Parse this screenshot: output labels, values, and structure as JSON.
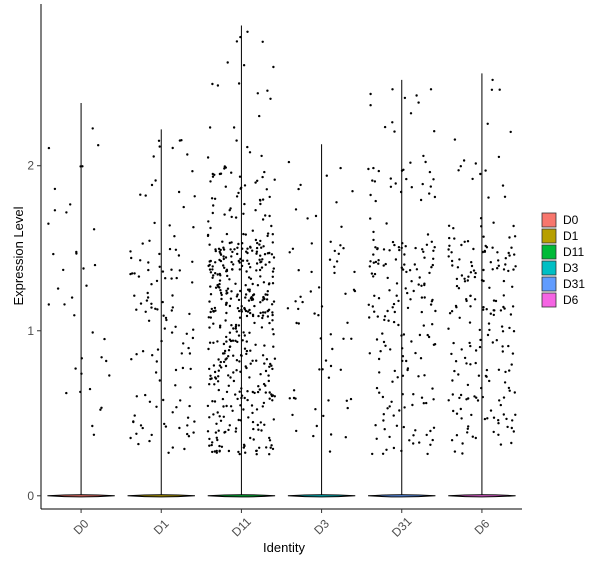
{
  "chart_data": {
    "type": "violin-jitter",
    "title": "",
    "xlabel": "Identity",
    "ylabel": "Expression Level",
    "categories": [
      "D0",
      "D1",
      "D11",
      "D3",
      "D31",
      "D6"
    ],
    "yticks": [
      0,
      1,
      2
    ],
    "ylim": [
      -0.08,
      2.98
    ],
    "grid": false,
    "legend_position": "right",
    "series": [
      {
        "name": "D0",
        "color": "#F8766D",
        "max": 2.38,
        "n_points": 38,
        "zero_width": 0.42
      },
      {
        "name": "D1",
        "color": "#B79F00",
        "max": 2.22,
        "n_points": 120,
        "zero_width": 0.42
      },
      {
        "name": "D11",
        "color": "#00BA38",
        "max": 2.85,
        "n_points": 480,
        "zero_width": 0.42
      },
      {
        "name": "D3",
        "color": "#00BFC4",
        "max": 2.13,
        "n_points": 70,
        "zero_width": 0.42
      },
      {
        "name": "D31",
        "color": "#619CFF",
        "max": 2.52,
        "n_points": 200,
        "zero_width": 0.42
      },
      {
        "name": "D6",
        "color": "#F564E3",
        "max": 2.56,
        "n_points": 200,
        "zero_width": 0.42
      }
    ]
  }
}
